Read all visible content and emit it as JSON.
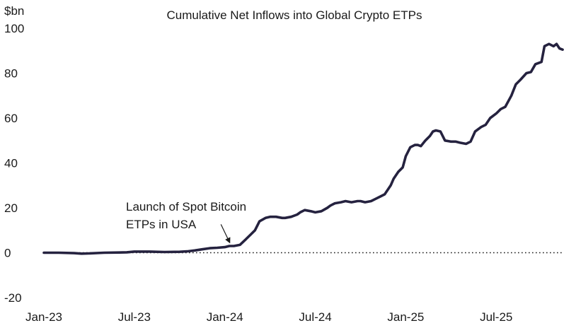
{
  "chart_data": {
    "type": "line",
    "title": "Cumulative Net Inflows into Global Crypto ETPs",
    "ylabel": "$bn",
    "xlabel": "",
    "ylim": [
      -20,
      100
    ],
    "y_ticks": [
      100,
      80,
      60,
      40,
      20,
      0,
      -20
    ],
    "x_ticks": [
      {
        "label": "Jan-23",
        "t": 0
      },
      {
        "label": "Jul-23",
        "t": 6
      },
      {
        "label": "Jan-24",
        "t": 12
      },
      {
        "label": "Jul-24",
        "t": 18
      },
      {
        "label": "Jan-25",
        "t": 24
      },
      {
        "label": "Jul-25",
        "t": 30
      }
    ],
    "xlim": [
      0,
      34.4
    ],
    "zero_line": "dotted",
    "annotation": {
      "lines": [
        "Launch of Spot Bitcoin",
        "ETPs in USA"
      ],
      "points_to_t": 12.4
    },
    "series": [
      {
        "name": "Cumulative Net Inflows",
        "color": "#25223f",
        "x": [
          0,
          1,
          2,
          2.5,
          3,
          4,
          5,
          5.5,
          6,
          7,
          8,
          9,
          9.5,
          10,
          10.5,
          11,
          11.5,
          12,
          12.3,
          12.6,
          13,
          13.4,
          13.7,
          14,
          14.3,
          14.7,
          15,
          15.4,
          15.8,
          16,
          16.4,
          16.8,
          17,
          17.3,
          17.7,
          18,
          18.4,
          18.8,
          19,
          19.3,
          19.7,
          20,
          20.4,
          20.8,
          21,
          21.3,
          21.7,
          22,
          22.3,
          22.6,
          23,
          23.2,
          23.5,
          23.8,
          24,
          24.3,
          24.6,
          24.8,
          25,
          25.3,
          25.6,
          25.8,
          26,
          26.3,
          26.6,
          27,
          27.3,
          27.6,
          28,
          28.3,
          28.6,
          29,
          29.3,
          29.6,
          30,
          30.3,
          30.6,
          31,
          31.3,
          31.6,
          32,
          32.3,
          32.6,
          33,
          33.2,
          33.5,
          33.8,
          34,
          34.2,
          34.4
        ],
        "values": [
          0,
          0,
          -0.2,
          -0.4,
          -0.3,
          0,
          0.1,
          0.2,
          0.5,
          0.5,
          0.3,
          0.4,
          0.6,
          1,
          1.5,
          2,
          2.2,
          2.5,
          3,
          3,
          3.5,
          6,
          8,
          10,
          14,
          15.5,
          16,
          16,
          15.5,
          15.5,
          16,
          17,
          18,
          19,
          18.5,
          18,
          18.5,
          20,
          21,
          22,
          22.5,
          23,
          22.5,
          23,
          23,
          22.5,
          23,
          24,
          25,
          26,
          30,
          33,
          36,
          38,
          43,
          47,
          48,
          48,
          47.5,
          50,
          52,
          54,
          54.5,
          54,
          50,
          49.5,
          49.5,
          49,
          48.5,
          49.5,
          54,
          56,
          57,
          60,
          62,
          64,
          65,
          70,
          75,
          77,
          80,
          80.5,
          84,
          85,
          92,
          93,
          92,
          93,
          91,
          90.5
        ]
      }
    ]
  }
}
